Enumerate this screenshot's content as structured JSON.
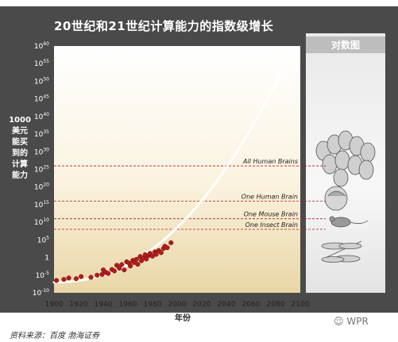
{
  "footer": {
    "source": "资料来源：百度 渤海证券",
    "watermark": "WPR"
  },
  "side_panel_title": "对数图",
  "chart_data": {
    "type": "scatter",
    "title": "20世纪和21世纪计算能力的指数级增长",
    "xlabel": "年份",
    "ylabel": [
      "1000",
      "美元",
      "能买",
      "到的",
      "计算",
      "能力"
    ],
    "x_ticks": [
      1900,
      1920,
      1940,
      1960,
      1980,
      2000,
      2020,
      2040,
      2060,
      2080,
      2100
    ],
    "xlim": [
      1900,
      2100
    ],
    "y_scale": "log10",
    "y_ticks": [
      {
        "exp": -10,
        "label": "10-10"
      },
      {
        "exp": -5,
        "label": "10-5"
      },
      {
        "exp": 0,
        "label": "1"
      },
      {
        "exp": 5,
        "label": "105"
      },
      {
        "exp": 10,
        "label": "1010"
      },
      {
        "exp": 15,
        "label": "1015"
      },
      {
        "exp": 20,
        "label": "1020"
      },
      {
        "exp": 25,
        "label": "1025"
      },
      {
        "exp": 30,
        "label": "1030"
      },
      {
        "exp": 35,
        "label": "1035"
      },
      {
        "exp": 40,
        "label": "1040"
      },
      {
        "exp": 45,
        "label": "1045"
      },
      {
        "exp": 50,
        "label": "1050"
      },
      {
        "exp": 55,
        "label": "1055"
      },
      {
        "exp": 60,
        "label": "1060"
      }
    ],
    "ylim_exp": [
      -10,
      60
    ],
    "reference_lines": [
      {
        "label": "All Human Brains",
        "exp": 26
      },
      {
        "label": "One Human Brain",
        "exp": 16
      },
      {
        "label": "One Mouse Brain",
        "exp": 11
      },
      {
        "label": "One Insect Brain",
        "exp": 8
      }
    ],
    "series": [
      {
        "kind": "historical",
        "color": "#b31c1c",
        "points": [
          [
            1902,
            -6.5
          ],
          [
            1908,
            -6.2
          ],
          [
            1912,
            -5.8
          ],
          [
            1918,
            -6.0
          ],
          [
            1922,
            -5.4
          ],
          [
            1930,
            -5.6
          ],
          [
            1935,
            -5.0
          ],
          [
            1939,
            -4.8
          ],
          [
            1940,
            -3.5
          ],
          [
            1942,
            -4.2
          ],
          [
            1944,
            -4.5
          ],
          [
            1947,
            -3.4
          ],
          [
            1949,
            -3.8
          ],
          [
            1951,
            -2.2
          ],
          [
            1953,
            -3.0
          ],
          [
            1955,
            -2.0
          ],
          [
            1957,
            -3.5
          ],
          [
            1959,
            -1.2
          ],
          [
            1961,
            -1.6
          ],
          [
            1962,
            -2.4
          ],
          [
            1964,
            -0.8
          ],
          [
            1965,
            -1.4
          ],
          [
            1967,
            -0.5
          ],
          [
            1968,
            -1.9
          ],
          [
            1970,
            0.3
          ],
          [
            1971,
            -0.9
          ],
          [
            1972,
            -0.2
          ],
          [
            1974,
            0.8
          ],
          [
            1975,
            -0.4
          ],
          [
            1977,
            0.6
          ],
          [
            1978,
            1.2
          ],
          [
            1980,
            0.4
          ],
          [
            1982,
            1.6
          ],
          [
            1983,
            0.9
          ],
          [
            1985,
            2.0
          ],
          [
            1987,
            1.4
          ],
          [
            1989,
            2.6
          ],
          [
            1990,
            3.2
          ],
          [
            1992,
            2.8
          ],
          [
            1995,
            4.2
          ]
        ]
      },
      {
        "kind": "projection",
        "color": "#ffffff",
        "x_range": [
          1900,
          2085
        ],
        "note": "exponential trend"
      }
    ]
  }
}
